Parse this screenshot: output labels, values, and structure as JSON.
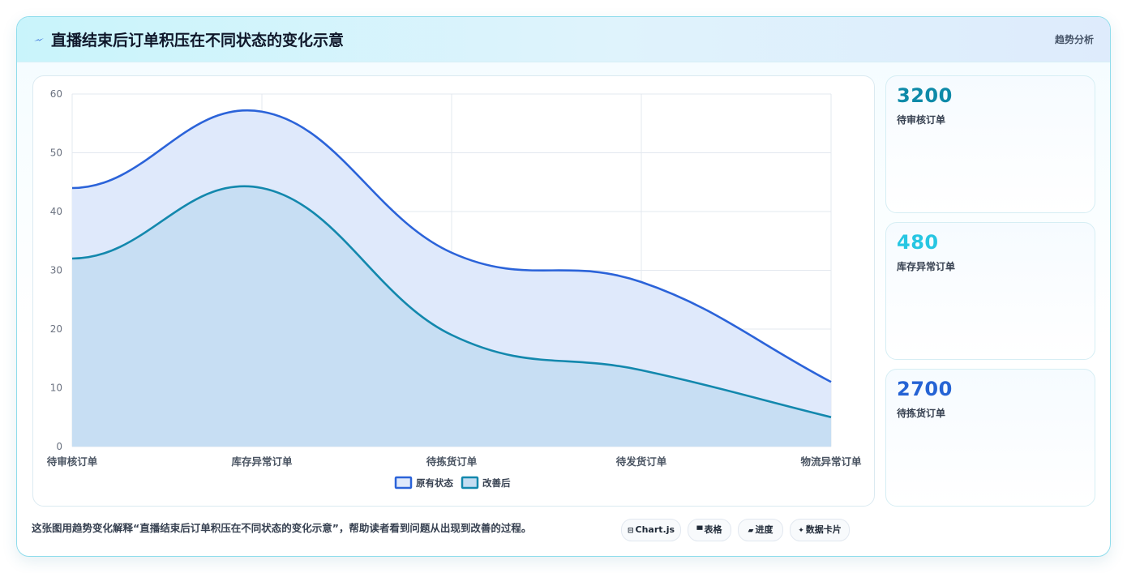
{
  "header": {
    "title": "直播结束后订单积压在不同状态的变化示意",
    "tag": "趋势分析"
  },
  "chart_data": {
    "type": "area",
    "categories": [
      "待审核订单",
      "库存异常订单",
      "待拣货订单",
      "待发货订单",
      "物流异常订单"
    ],
    "series": [
      {
        "name": "原有状态",
        "values": [
          44,
          57,
          33,
          28,
          11
        ],
        "color": "#2b63d9",
        "fill": "#dfe9fb"
      },
      {
        "name": "改善后",
        "values": [
          32,
          44,
          19,
          13,
          5
        ],
        "color": "#1388ad",
        "fill": "#c4ddf2"
      }
    ],
    "ylim": [
      0,
      60
    ],
    "yticks": [
      0,
      10,
      20,
      30,
      40,
      50,
      60
    ],
    "grid": true,
    "legend": "bottom"
  },
  "kpis": [
    {
      "value": "3200",
      "label": "待审核订单",
      "color": "#0e8aa8"
    },
    {
      "value": "480",
      "label": "库存异常订单",
      "color": "#27c6e2"
    },
    {
      "value": "2700",
      "label": "待拣货订单",
      "color": "#2563d4"
    }
  ],
  "footnote": "这张图用趋势变化解释“直播结束后订单积压在不同状态的变化示意”，帮助读者看到问题从出现到改善的过程。",
  "chips": [
    {
      "icon": "⊟",
      "label": "Chart.js",
      "icon_name": "chart-icon"
    },
    {
      "icon": "▀",
      "label": "表格",
      "icon_name": "table-icon"
    },
    {
      "icon": "▰",
      "label": "进度",
      "icon_name": "progress-icon"
    },
    {
      "icon": "✦",
      "label": "数据卡片",
      "icon_name": "sparkle-icon"
    }
  ]
}
